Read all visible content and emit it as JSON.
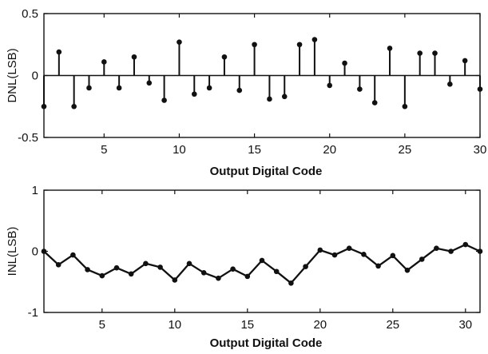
{
  "colors": {
    "line": "#111111",
    "marker": "#111111",
    "axes": "#111111",
    "background": "#ffffff"
  },
  "chart_data": [
    {
      "id": "dnl",
      "type": "stem",
      "title": "",
      "xlabel": "Output Digital Code",
      "ylabel": "DNL(LSB)",
      "xlim": [
        1,
        30
      ],
      "ylim": [
        -0.5,
        0.5
      ],
      "xticks": [
        5,
        10,
        15,
        20,
        25,
        30
      ],
      "yticks": [
        -0.5,
        0,
        0.5
      ],
      "ytick_labels": [
        "-0.5",
        "0",
        "0.5"
      ],
      "grid": false,
      "x": [
        1,
        2,
        3,
        4,
        5,
        6,
        7,
        8,
        9,
        10,
        11,
        12,
        13,
        14,
        15,
        16,
        17,
        18,
        19,
        20,
        21,
        22,
        23,
        24,
        25,
        26,
        27,
        28,
        29,
        30
      ],
      "values": [
        -0.25,
        0.19,
        -0.25,
        -0.1,
        0.11,
        -0.1,
        0.15,
        -0.06,
        -0.2,
        0.27,
        -0.15,
        -0.1,
        0.15,
        -0.12,
        0.25,
        -0.19,
        -0.17,
        0.25,
        0.29,
        -0.08,
        0.1,
        -0.11,
        -0.22,
        0.22,
        -0.25,
        0.18,
        0.18,
        -0.07,
        0.12,
        -0.11
      ]
    },
    {
      "id": "inl",
      "type": "line",
      "title": "",
      "xlabel": "Output Digital Code",
      "ylabel": "INL(LSB)",
      "xlim": [
        1,
        31
      ],
      "ylim": [
        -1,
        1
      ],
      "xticks": [
        5,
        10,
        15,
        20,
        25,
        30
      ],
      "yticks": [
        -1,
        0,
        1
      ],
      "ytick_labels": [
        "-1",
        "0",
        "1"
      ],
      "grid": false,
      "x": [
        1,
        2,
        3,
        4,
        5,
        6,
        7,
        8,
        9,
        10,
        11,
        12,
        13,
        14,
        15,
        16,
        17,
        18,
        19,
        20,
        21,
        22,
        23,
        24,
        25,
        26,
        27,
        28,
        29,
        30,
        31
      ],
      "values": [
        0,
        -0.22,
        -0.06,
        -0.3,
        -0.4,
        -0.27,
        -0.37,
        -0.2,
        -0.26,
        -0.47,
        -0.2,
        -0.35,
        -0.44,
        -0.29,
        -0.41,
        -0.15,
        -0.33,
        -0.52,
        -0.25,
        0.02,
        -0.06,
        0.05,
        -0.05,
        -0.24,
        -0.07,
        -0.31,
        -0.13,
        0.05,
        0,
        0.11,
        0
      ]
    }
  ]
}
